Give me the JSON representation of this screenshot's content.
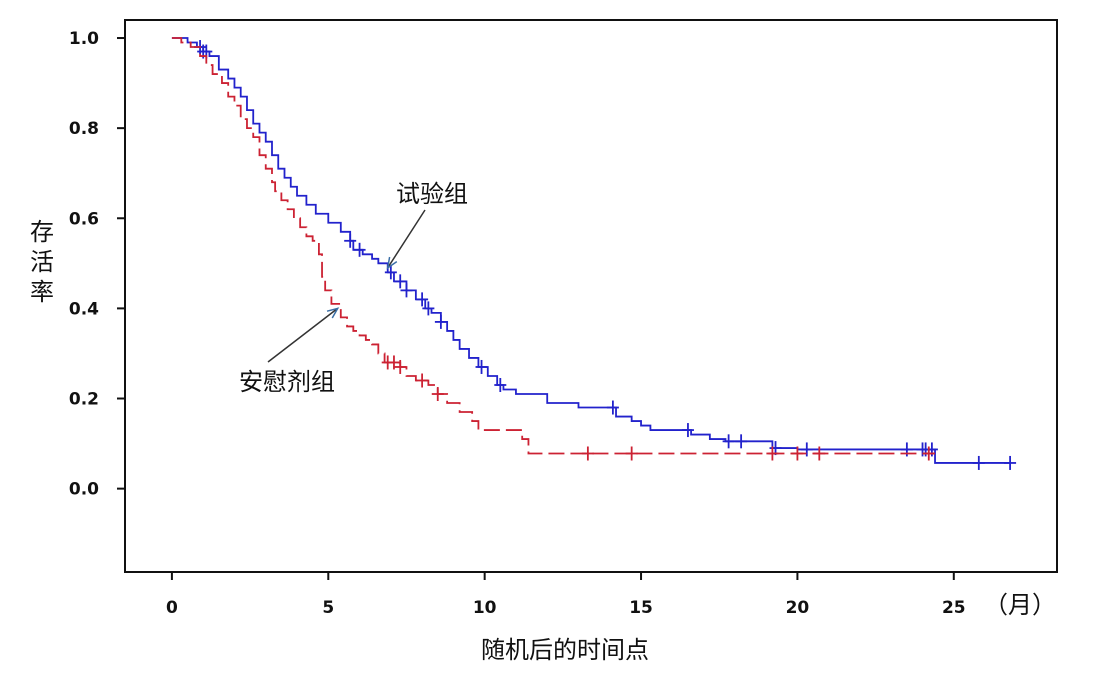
{
  "chart_data": {
    "type": "line",
    "title": "",
    "xlabel": "随机后的时间点",
    "xunit": "（月）",
    "ylabel": "存活率",
    "xlim": [
      -1.5,
      28.3
    ],
    "ylim": [
      -0.185,
      1.04
    ],
    "xticks": [
      0,
      5,
      10,
      15,
      20,
      25
    ],
    "yticks": [
      0.0,
      0.2,
      0.4,
      0.6,
      0.8,
      1.0
    ],
    "ytick_labels": [
      "0.0",
      "0.2",
      "0.4",
      "0.6",
      "0.8",
      "1.0"
    ],
    "grid": false,
    "series": [
      {
        "name": "试验组",
        "color": "#2222cc",
        "style": "solid",
        "steps": [
          [
            0,
            1.0
          ],
          [
            0.5,
            0.99
          ],
          [
            0.8,
            0.98
          ],
          [
            1.0,
            0.97
          ],
          [
            1.2,
            0.96
          ],
          [
            1.5,
            0.93
          ],
          [
            1.8,
            0.91
          ],
          [
            2.0,
            0.89
          ],
          [
            2.2,
            0.87
          ],
          [
            2.4,
            0.84
          ],
          [
            2.6,
            0.81
          ],
          [
            2.8,
            0.79
          ],
          [
            3.0,
            0.77
          ],
          [
            3.2,
            0.74
          ],
          [
            3.4,
            0.71
          ],
          [
            3.6,
            0.69
          ],
          [
            3.8,
            0.67
          ],
          [
            4.0,
            0.65
          ],
          [
            4.3,
            0.63
          ],
          [
            4.6,
            0.61
          ],
          [
            5.0,
            0.59
          ],
          [
            5.4,
            0.57
          ],
          [
            5.7,
            0.55
          ],
          [
            5.8,
            0.53
          ],
          [
            6.1,
            0.52
          ],
          [
            6.4,
            0.51
          ],
          [
            6.6,
            0.5
          ],
          [
            6.9,
            0.48
          ],
          [
            7.1,
            0.46
          ],
          [
            7.5,
            0.44
          ],
          [
            7.8,
            0.42
          ],
          [
            8.1,
            0.4
          ],
          [
            8.3,
            0.39
          ],
          [
            8.6,
            0.37
          ],
          [
            8.8,
            0.35
          ],
          [
            9.0,
            0.33
          ],
          [
            9.2,
            0.31
          ],
          [
            9.5,
            0.29
          ],
          [
            9.8,
            0.27
          ],
          [
            10.1,
            0.25
          ],
          [
            10.4,
            0.23
          ],
          [
            10.6,
            0.22
          ],
          [
            11.0,
            0.21
          ],
          [
            12.0,
            0.19
          ],
          [
            13.0,
            0.18
          ],
          [
            14.2,
            0.16
          ],
          [
            14.7,
            0.15
          ],
          [
            15.0,
            0.14
          ],
          [
            15.3,
            0.13
          ],
          [
            16.6,
            0.12
          ],
          [
            17.2,
            0.11
          ],
          [
            17.7,
            0.105
          ],
          [
            19.2,
            0.09
          ],
          [
            20.0,
            0.087
          ],
          [
            24.4,
            0.057
          ],
          [
            26.8,
            0.057
          ]
        ],
        "censor_x": [
          0.9,
          1.0,
          1.1,
          5.7,
          6.0,
          7.0,
          7.3,
          7.5,
          8.0,
          8.2,
          8.6,
          9.9,
          10.5,
          14.1,
          16.5,
          17.8,
          18.2,
          19.3,
          20.3,
          23.5,
          24.0,
          24.1,
          24.3,
          25.8,
          26.8
        ]
      },
      {
        "name": "安慰剂组",
        "color": "#cc2233",
        "style": "dashed",
        "steps": [
          [
            0,
            1.0
          ],
          [
            0.3,
            0.99
          ],
          [
            0.6,
            0.98
          ],
          [
            0.9,
            0.96
          ],
          [
            1.1,
            0.94
          ],
          [
            1.3,
            0.92
          ],
          [
            1.6,
            0.9
          ],
          [
            1.8,
            0.87
          ],
          [
            2.0,
            0.85
          ],
          [
            2.2,
            0.82
          ],
          [
            2.4,
            0.8
          ],
          [
            2.6,
            0.78
          ],
          [
            2.8,
            0.74
          ],
          [
            3.0,
            0.71
          ],
          [
            3.2,
            0.68
          ],
          [
            3.3,
            0.66
          ],
          [
            3.5,
            0.64
          ],
          [
            3.7,
            0.62
          ],
          [
            3.9,
            0.6
          ],
          [
            4.1,
            0.58
          ],
          [
            4.3,
            0.56
          ],
          [
            4.5,
            0.55
          ],
          [
            4.7,
            0.52
          ],
          [
            4.8,
            0.47
          ],
          [
            4.9,
            0.44
          ],
          [
            5.1,
            0.41
          ],
          [
            5.4,
            0.38
          ],
          [
            5.6,
            0.36
          ],
          [
            5.8,
            0.35
          ],
          [
            6.0,
            0.34
          ],
          [
            6.2,
            0.33
          ],
          [
            6.4,
            0.32
          ],
          [
            6.6,
            0.3
          ],
          [
            6.8,
            0.28
          ],
          [
            7.3,
            0.27
          ],
          [
            7.5,
            0.25
          ],
          [
            7.8,
            0.24
          ],
          [
            8.2,
            0.23
          ],
          [
            8.5,
            0.21
          ],
          [
            8.8,
            0.19
          ],
          [
            9.2,
            0.17
          ],
          [
            9.6,
            0.15
          ],
          [
            9.8,
            0.13
          ],
          [
            11.2,
            0.11
          ],
          [
            11.4,
            0.078
          ],
          [
            24.4,
            0.078
          ]
        ],
        "censor_x": [
          6.9,
          7.1,
          7.3,
          8.0,
          8.5,
          13.3,
          14.7,
          19.2,
          20.0,
          20.7,
          24.2
        ]
      }
    ],
    "annotations": [
      {
        "text": "试验组",
        "series": "试验组",
        "arrow_to": [
          6.9,
          0.49
        ]
      },
      {
        "text": "安慰剂组",
        "series": "安慰剂组",
        "arrow_to": [
          5.3,
          0.4
        ]
      }
    ]
  }
}
